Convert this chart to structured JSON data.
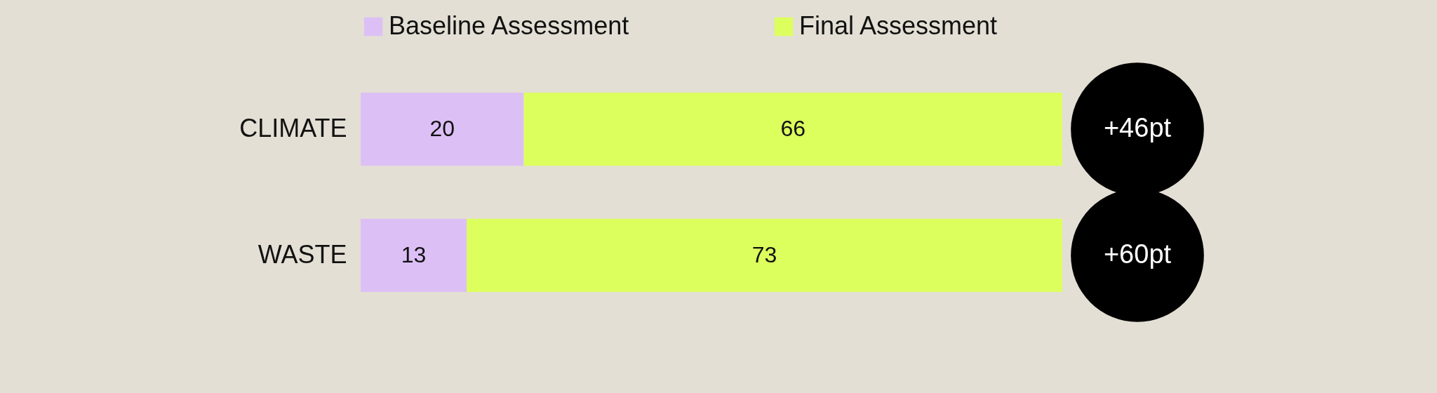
{
  "chart_data": {
    "type": "bar",
    "orientation": "horizontal",
    "stacked": true,
    "categories": [
      "CLIMATE",
      "WASTE"
    ],
    "series": [
      {
        "name": "Baseline Assessment",
        "color": "#dcc0f5",
        "values": [
          20,
          13
        ]
      },
      {
        "name": "Final Assessment",
        "color": "#dcff5e",
        "values": [
          66,
          73
        ]
      }
    ],
    "data_labels": true,
    "legend": "top",
    "tick_labels": "y",
    "annotations": [
      {
        "text": "+46pt",
        "x": 86,
        "y": "CLIMATE"
      },
      {
        "text": "+60pt",
        "x": 86,
        "y": "WASTE"
      }
    ]
  }
}
